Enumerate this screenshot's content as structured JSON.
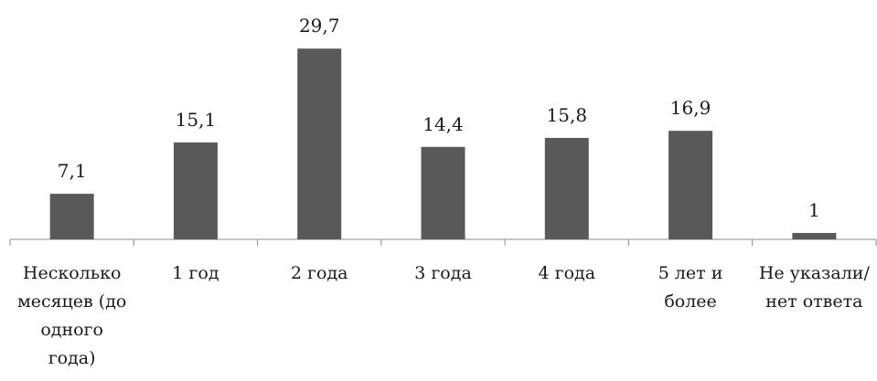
{
  "chart_data": {
    "type": "bar",
    "title": "",
    "xlabel": "",
    "ylabel": "",
    "ylim": [
      0,
      32
    ],
    "grid": false,
    "categories": [
      [
        "Несколько",
        "месяцев (до",
        "одного",
        "года)"
      ],
      [
        "1 год"
      ],
      [
        "2 года"
      ],
      [
        "3 года"
      ],
      [
        "4 года"
      ],
      [
        "5 лет и",
        "более"
      ],
      [
        "Не указали/",
        "нет ответа"
      ]
    ],
    "values": [
      7.1,
      15.1,
      29.7,
      14.4,
      15.8,
      16.9,
      1
    ],
    "value_labels": [
      "7,1",
      "15,1",
      "29,7",
      "14,4",
      "15,8",
      "16,9",
      "1"
    ],
    "bar_color": "#595959",
    "axis_color": "#8c8c8c"
  }
}
